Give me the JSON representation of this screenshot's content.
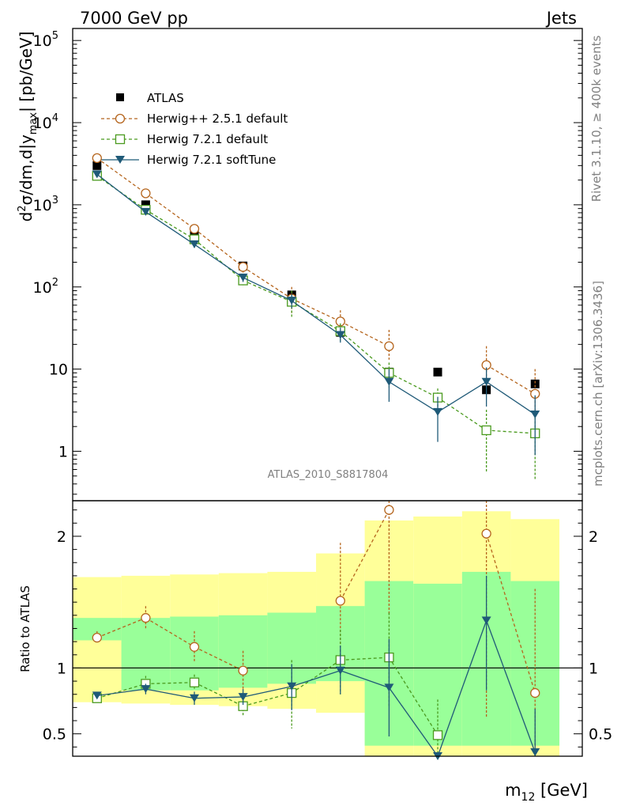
{
  "header": {
    "left": "7000 GeV pp",
    "right": "Jets"
  },
  "side_labels": {
    "rivet": "Rivet 3.1.10, ≥ 400k events",
    "mcplots": "mcplots.cern.ch [arXiv:1306.3436]"
  },
  "watermark": "ATLAS_2010_S8817804",
  "colors": {
    "data": "#000000",
    "herwigpp": "#b5651d",
    "herwig721": "#4a9a1e",
    "softtune": "#1f5a78",
    "band_outer": "#ffff99",
    "band_inner": "#99ff99"
  },
  "chart_data": [
    {
      "type": "line",
      "ylabel": "d²σ/dm,d|y_max| [pb/GeV]",
      "yscale": "log",
      "ylim": [
        0.25,
        140000
      ],
      "y_ticks": [
        {
          "value": 1,
          "label": "1"
        },
        {
          "value": 10,
          "label": "10"
        },
        {
          "value": 100,
          "label": "10",
          "sup": "2"
        },
        {
          "value": 1000,
          "label": "10",
          "sup": "3"
        },
        {
          "value": 10000,
          "label": "10",
          "sup": "4"
        },
        {
          "value": 100000,
          "label": "10",
          "sup": "5"
        }
      ],
      "x_bins": [
        1,
        2,
        3,
        4,
        5,
        6,
        7,
        8,
        9,
        10
      ],
      "legend": [
        "ATLAS",
        "Herwig++ 2.5.1 default",
        "Herwig 7.2.1 default",
        "Herwig 7.2.1 softTune"
      ],
      "series": [
        {
          "name": "ATLAS",
          "key": "data",
          "x": [
            1,
            2,
            3,
            4,
            5,
            6,
            7,
            8,
            9,
            10
          ],
          "values": [
            3000,
            1000,
            440,
            180,
            80,
            28,
            9.2,
            9.2,
            5.6,
            6.6
          ]
        },
        {
          "name": "Herwig++ 2.5.1 default",
          "key": "herwigpp",
          "x": [
            1,
            2,
            3,
            4,
            5,
            6,
            7,
            8,
            9,
            10
          ],
          "values": [
            3700,
            1380,
            510,
            175,
            72,
            38,
            19,
            null,
            11.2,
            5.0
          ],
          "err_lo": [
            3450,
            1270,
            460,
            150,
            46,
            28,
            13,
            null,
            7.5,
            2.8
          ],
          "err_hi": [
            3950,
            1500,
            560,
            200,
            100,
            52,
            30,
            null,
            19,
            10
          ]
        },
        {
          "name": "Herwig 7.2.1 default",
          "key": "herwig721",
          "x": [
            1,
            2,
            3,
            4,
            5,
            6,
            7,
            8,
            9,
            10
          ],
          "values": [
            2250,
            870,
            380,
            120,
            66,
            29,
            9.0,
            4.5,
            1.8,
            1.65
          ],
          "err_lo": [
            2100,
            800,
            340,
            100,
            42,
            22,
            6.0,
            3.2,
            0.55,
            0.45
          ],
          "err_hi": [
            2400,
            940,
            420,
            140,
            90,
            36,
            12,
            5.8,
            3.2,
            2.9
          ]
        },
        {
          "name": "Herwig 7.2.1 softTune",
          "key": "softtune",
          "x": [
            1,
            2,
            3,
            4,
            5,
            6,
            7,
            8,
            9,
            10
          ],
          "values": [
            2350,
            820,
            330,
            130,
            68,
            26,
            7.0,
            3.0,
            7.0,
            2.8
          ],
          "err_lo": [
            2200,
            760,
            300,
            115,
            55,
            21,
            4.0,
            1.3,
            3.5,
            0.9
          ],
          "err_hi": [
            2500,
            890,
            360,
            145,
            82,
            32,
            10,
            4.6,
            10.5,
            4.8
          ]
        }
      ]
    },
    {
      "type": "line",
      "ylabel": "Ratio to ATLAS",
      "xlabel": "m",
      "xlabel_sub": "12",
      "xlabel_unit": " [GeV]",
      "ylim": [
        0.33,
        2.27
      ],
      "y_ticks": [
        {
          "value": 0.5,
          "label": "0.5"
        },
        {
          "value": 1,
          "label": "1"
        },
        {
          "value": 2,
          "label": "2"
        }
      ],
      "bands": {
        "edges": [
          0.5,
          1.5,
          2.5,
          3.5,
          4.5,
          5.5,
          6.5,
          7.5,
          8.5,
          9.5,
          10.5
        ],
        "outer_lo": [
          0.74,
          0.73,
          0.72,
          0.71,
          0.69,
          0.66,
          0.33,
          0.33,
          0.33,
          0.33
        ],
        "outer_hi": [
          1.69,
          1.7,
          1.71,
          1.72,
          1.73,
          1.87,
          2.12,
          2.15,
          2.19,
          2.13
        ],
        "inner_lo": [
          1.21,
          0.83,
          0.83,
          0.85,
          0.88,
          0.9,
          0.41,
          0.41,
          0.41,
          0.41
        ],
        "inner_hi": [
          1.38,
          1.38,
          1.39,
          1.4,
          1.42,
          1.47,
          1.66,
          1.64,
          1.73,
          1.66
        ]
      },
      "series": [
        {
          "name": "Herwig++ 2.5.1 default",
          "key": "herwigpp",
          "x": [
            1,
            2,
            3,
            4,
            5,
            6,
            7,
            8,
            9,
            10
          ],
          "values": [
            1.23,
            1.38,
            1.16,
            0.98,
            null,
            1.51,
            2.2,
            null,
            2.02,
            0.81
          ],
          "err_lo": [
            1.19,
            1.3,
            1.05,
            0.83,
            null,
            1.05,
            1.4,
            null,
            0.62,
            0.4
          ],
          "err_hi": [
            1.28,
            1.47,
            1.28,
            1.13,
            null,
            1.95,
            2.27,
            null,
            2.27,
            1.6
          ]
        },
        {
          "name": "Herwig 7.2.1 default",
          "key": "herwig721",
          "x": [
            1,
            2,
            3,
            4,
            5,
            6,
            7,
            8,
            9,
            10
          ],
          "values": [
            0.77,
            0.88,
            0.89,
            0.71,
            0.81,
            1.06,
            1.08,
            0.49,
            null,
            null
          ],
          "err_lo": [
            0.75,
            0.83,
            0.83,
            0.64,
            0.54,
            0.8,
            0.71,
            0.33,
            null,
            null
          ],
          "err_hi": [
            0.79,
            0.94,
            0.95,
            0.78,
            1.06,
            1.29,
            1.42,
            0.76,
            null,
            null
          ]
        },
        {
          "name": "Herwig 7.2.1 softTune",
          "key": "softtune",
          "x": [
            1,
            2,
            3,
            4,
            5,
            6,
            7,
            8,
            9,
            10
          ],
          "values": [
            0.79,
            0.84,
            0.77,
            0.78,
            0.86,
            0.98,
            0.85,
            0.33,
            1.36,
            0.36
          ],
          "err_lo": [
            0.77,
            0.8,
            0.72,
            0.72,
            0.68,
            0.8,
            0.48,
            0.33,
            0.83,
            0.33
          ],
          "err_hi": [
            0.81,
            0.88,
            0.82,
            0.84,
            1.03,
            1.17,
            1.22,
            0.33,
            1.7,
            0.69
          ]
        }
      ]
    }
  ]
}
